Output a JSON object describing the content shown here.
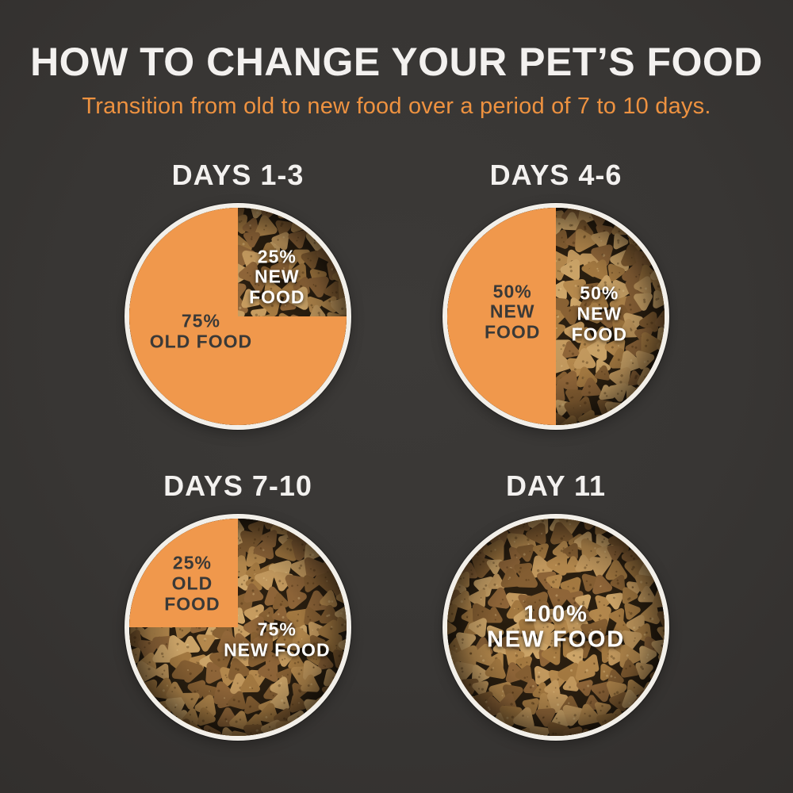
{
  "header": {
    "title": "HOW TO CHANGE YOUR PET’S FOOD",
    "subtitle": "Transition from old to new food over a period of 7 to 10 days."
  },
  "panels": [
    {
      "heading": "DAYS 1-3",
      "labels": [
        {
          "style": "dark",
          "lines": [
            "75%",
            "OLD FOOD"
          ]
        },
        {
          "style": "light",
          "lines": [
            "25%",
            "NEW",
            "FOOD"
          ]
        }
      ]
    },
    {
      "heading": "DAYS 4-6",
      "labels": [
        {
          "style": "dark",
          "lines": [
            "50%",
            "NEW",
            "FOOD"
          ]
        },
        {
          "style": "light",
          "lines": [
            "50%",
            "NEW",
            "FOOD"
          ]
        }
      ]
    },
    {
      "heading": "DAYS 7-10",
      "labels": [
        {
          "style": "dark",
          "lines": [
            "25%",
            "OLD",
            "FOOD"
          ]
        },
        {
          "style": "light",
          "lines": [
            "75%",
            "NEW FOOD"
          ]
        }
      ]
    },
    {
      "heading": "DAY 11",
      "labels": [
        {
          "style": "light",
          "lines": [
            "100%",
            "NEW FOOD"
          ]
        }
      ]
    }
  ],
  "chart_data": [
    {
      "type": "pie",
      "title": "DAYS 1-3",
      "slices": [
        {
          "label": "75% OLD FOOD",
          "value": 75,
          "fill": "orange-solid"
        },
        {
          "label": "25% NEW FOOD",
          "value": 25,
          "fill": "kibble-photo",
          "position": "top-right-quadrant"
        }
      ]
    },
    {
      "type": "pie",
      "title": "DAYS 4-6",
      "slices": [
        {
          "label": "50% NEW FOOD",
          "value": 50,
          "fill": "orange-solid",
          "position": "left-half"
        },
        {
          "label": "50% NEW FOOD",
          "value": 50,
          "fill": "kibble-photo",
          "position": "right-half"
        }
      ]
    },
    {
      "type": "pie",
      "title": "DAYS 7-10",
      "slices": [
        {
          "label": "25% OLD FOOD",
          "value": 25,
          "fill": "orange-solid",
          "position": "top-left-quadrant"
        },
        {
          "label": "75% NEW FOOD",
          "value": 75,
          "fill": "kibble-photo"
        }
      ]
    },
    {
      "type": "pie",
      "title": "DAY 11",
      "slices": [
        {
          "label": "100% NEW FOOD",
          "value": 100,
          "fill": "kibble-photo"
        }
      ]
    }
  ],
  "colors": {
    "background": "#383634",
    "accent_orange": "#f0984c",
    "subtitle_orange": "#ee9240",
    "title_white": "#f3f1ef",
    "dark_label_text": "#3a3937",
    "bowl_rim_white": "#f2efe9",
    "kibble_gap_dark": "#2b1f10",
    "kibble_shades": [
      "#c99e61",
      "#b98c4f",
      "#a97d43",
      "#93683a",
      "#d2a96b",
      "#8a6234"
    ]
  }
}
